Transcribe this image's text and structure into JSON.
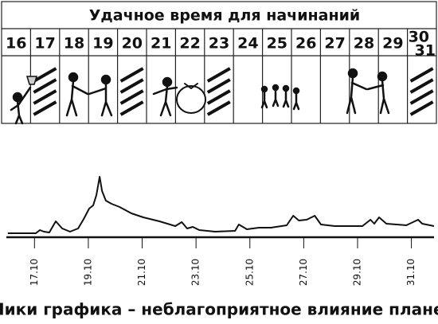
{
  "title": "Удачное время для начинаний",
  "days": [
    "16",
    "17",
    "18",
    "19",
    "20",
    "21",
    "22",
    "23",
    "24",
    "25",
    "26",
    "27",
    "28",
    "29",
    "30",
    "31"
  ],
  "chart_data": {
    "type": "line",
    "caption": "Пики графика – неблагоприятное влияние планет",
    "x": [
      16.01,
      17.05,
      17.2,
      17.35,
      17.55,
      17.79,
      18.03,
      18.32,
      18.62,
      18.83,
      19.03,
      19.18,
      19.3,
      19.42,
      19.51,
      19.65,
      19.86,
      20.16,
      20.6,
      21.04,
      21.64,
      22.23,
      22.47,
      22.67,
      22.88,
      23.12,
      23.71,
      24.45,
      24.59,
      24.89,
      25.34,
      25.78,
      26.37,
      26.61,
      26.82,
      27.11,
      27.41,
      27.64,
      28.15,
      29.18,
      29.48,
      29.62,
      29.8,
      30.07,
      30.81,
      31.25,
      31.4,
      31.84
    ],
    "values": [
      5,
      5,
      9,
      7,
      6,
      20,
      11,
      7,
      11,
      23,
      36,
      40,
      53,
      76,
      58,
      46,
      42,
      38,
      30,
      25,
      20,
      14,
      19,
      11,
      13,
      9,
      7,
      8,
      16,
      10,
      12,
      12,
      15,
      27,
      21,
      22,
      27,
      16,
      14,
      14,
      22,
      17,
      25,
      17,
      15,
      22,
      17,
      14
    ],
    "color": "#111111",
    "xlim": [
      16,
      31.84
    ],
    "ylim": [
      0,
      80
    ],
    "xticks": [
      {
        "value": 17,
        "label": "17.10"
      },
      {
        "value": 19,
        "label": "19.10"
      },
      {
        "value": 21,
        "label": "21.10"
      },
      {
        "value": 23,
        "label": "23.10"
      },
      {
        "value": 25,
        "label": "25.10"
      },
      {
        "value": 27,
        "label": "27.10"
      },
      {
        "value": 29,
        "label": "29.10"
      },
      {
        "value": 31,
        "label": "31.10"
      }
    ]
  }
}
